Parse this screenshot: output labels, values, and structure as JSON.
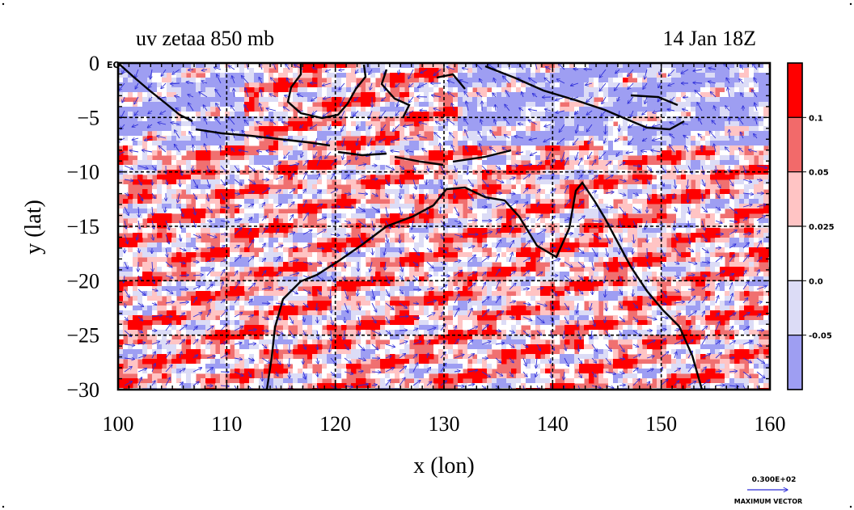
{
  "title": {
    "left": "uv zetaa 850 mb",
    "right": "14 Jan 18Z"
  },
  "axes": {
    "xlabel": "x (lon)",
    "ylabel": "y (lat)",
    "xticks": [
      "100",
      "110",
      "120",
      "130",
      "140",
      "150",
      "160"
    ],
    "yticks": [
      "0",
      "−5",
      "−10",
      "−15",
      "−20",
      "−25",
      "−30"
    ],
    "eq_label": "EQ"
  },
  "colorbar": {
    "labels": [
      "0.1",
      "0.05",
      "0.025",
      "0.0",
      "-0.05"
    ],
    "colors": [
      "#ff0000",
      "#f26a6a",
      "#ffc4c4",
      "#ffffff",
      "#dcdcf6",
      "#9e9ef2"
    ]
  },
  "vector_key": {
    "value": "0.300E+02",
    "label": "MAXIMUM VECTOR"
  },
  "chart_data": {
    "type": "heatmap",
    "title": "uv zetaa 850 mb",
    "xlabel": "x (lon)",
    "ylabel": "y (lat)",
    "xlim": [
      100,
      160
    ],
    "ylim": [
      -30,
      0
    ],
    "grid": true,
    "levels": [
      -0.05,
      0.0,
      0.025,
      0.05,
      0.1
    ],
    "overlay": "wind vectors"
  }
}
